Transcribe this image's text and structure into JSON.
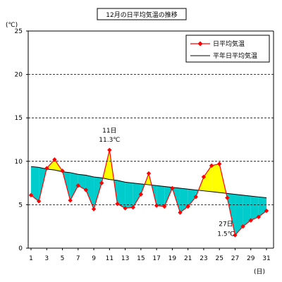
{
  "chart_data": {
    "type": "line",
    "title": "12月の日平均気温の推移",
    "ylabel": "(℃)",
    "xlabel": "(日)",
    "ylim": [
      0,
      25
    ],
    "xlim": [
      1,
      31
    ],
    "yticks": [
      "0",
      "5",
      "10",
      "15",
      "20",
      "25"
    ],
    "xticks": [
      "1",
      "3",
      "5",
      "7",
      "9",
      "11",
      "13",
      "15",
      "17",
      "19",
      "21",
      "23",
      "25",
      "27",
      "29",
      "31"
    ],
    "grid": "horizontal dashed",
    "legend_position": "top-right",
    "x": [
      1,
      2,
      3,
      4,
      5,
      6,
      7,
      8,
      9,
      10,
      11,
      12,
      13,
      14,
      15,
      16,
      17,
      18,
      19,
      20,
      21,
      22,
      23,
      24,
      25,
      26,
      27,
      28,
      29,
      30,
      31
    ],
    "series": [
      {
        "name": "日平均気温",
        "color": "#ff0000",
        "marker": "diamond",
        "values": [
          6.1,
          5.4,
          9.2,
          10.2,
          8.9,
          5.5,
          7.2,
          6.7,
          4.5,
          7.5,
          11.3,
          5.1,
          4.6,
          4.7,
          6.2,
          8.6,
          4.9,
          4.8,
          6.9,
          4.1,
          4.8,
          5.9,
          8.2,
          9.5,
          9.7,
          5.8,
          1.5,
          2.5,
          3.2,
          3.6,
          4.3
        ]
      },
      {
        "name": "平年日平均気温",
        "color": "#000000",
        "values": [
          9.4,
          9.3,
          9.1,
          9.0,
          8.8,
          8.7,
          8.5,
          8.4,
          8.2,
          8.1,
          7.9,
          7.8,
          7.6,
          7.5,
          7.4,
          7.3,
          7.2,
          7.1,
          7.0,
          6.9,
          6.8,
          6.7,
          6.6,
          6.5,
          6.4,
          6.3,
          6.2,
          6.1,
          6.0,
          5.9,
          5.8
        ]
      }
    ],
    "fill_above_color": "#ffff00",
    "fill_below_color": "#00cccc",
    "annotations": [
      {
        "day": 11,
        "line1": "11日",
        "line2": "11.3℃",
        "placement": "above"
      },
      {
        "day": 27,
        "line1": "27日",
        "line2": "1.5℃",
        "placement": "left"
      }
    ]
  }
}
